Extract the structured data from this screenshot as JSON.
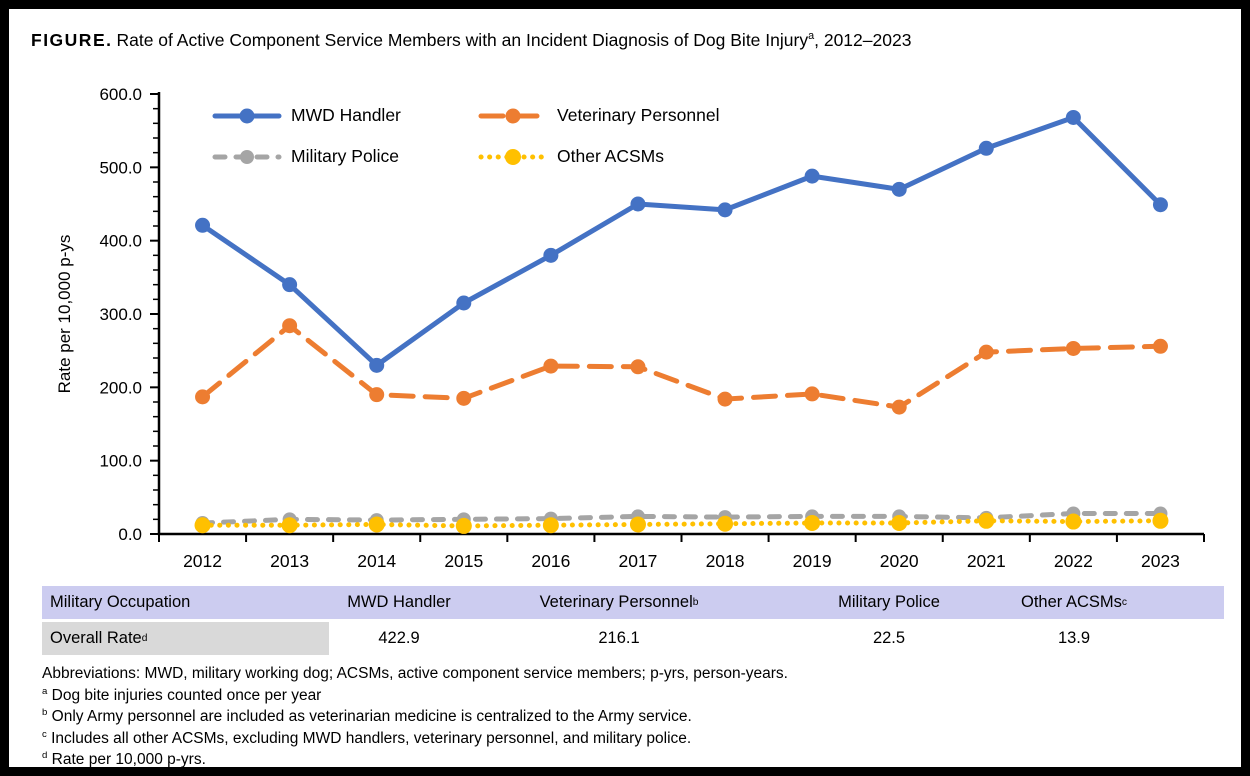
{
  "figure": {
    "label": "FIGURE.",
    "title": "Rate of Active Component Service Members with an Incident Diagnosis of Dog Bite Injury",
    "title_sup": "a",
    "title_suffix": ", 2012–2023"
  },
  "chart_data": {
    "type": "line",
    "ylabel": "Rate per 10,000 p-ys",
    "ylim": [
      0,
      600
    ],
    "ytick_major": 100,
    "ytick_minor": 20,
    "ytick_labels": [
      "0.0",
      "100.0",
      "200.0",
      "300.0",
      "400.0",
      "500.0",
      "600.0"
    ],
    "grid": "off",
    "legend_position": "top-left-inside",
    "categories": [
      "2012",
      "2013",
      "2014",
      "2015",
      "2016",
      "2017",
      "2018",
      "2019",
      "2020",
      "2021",
      "2022",
      "2023"
    ],
    "series": [
      {
        "name": "MWD Handler",
        "color": "#4472C4",
        "dash": "solid",
        "values": [
          421,
          340,
          230,
          315,
          380,
          450,
          442,
          488,
          470,
          526,
          568,
          449
        ]
      },
      {
        "name": "Veterinary Personnel",
        "color": "#ED7D31",
        "dash": "long-dash",
        "values": [
          187,
          284,
          190,
          185,
          229,
          228,
          184,
          191,
          173,
          248,
          253,
          256
        ]
      },
      {
        "name": "Military Police",
        "color": "#A5A5A5",
        "dash": "dash",
        "values": [
          15,
          20,
          19,
          20,
          21,
          24,
          23,
          24,
          24,
          22,
          28,
          28
        ]
      },
      {
        "name": "Other ACSMs",
        "color": "#FFC000",
        "dash": "dot",
        "values": [
          12,
          12,
          13,
          11,
          12,
          13,
          14,
          15,
          15,
          18,
          17,
          18
        ]
      }
    ]
  },
  "table": {
    "header_bg": "#CCCCF0",
    "label_bg": "#D9D9D9",
    "headers": [
      {
        "label": "Military Occupation",
        "sup": ""
      },
      {
        "label": "MWD Handler",
        "sup": ""
      },
      {
        "label": "Veterinary Personnel",
        "sup": "b"
      },
      {
        "label": "Military Police",
        "sup": ""
      },
      {
        "label": "Other ACSMs",
        "sup": "c"
      }
    ],
    "row": {
      "label": "Overall Rate",
      "sup": "d",
      "values": [
        "422.9",
        "216.1",
        "22.5",
        "13.9"
      ]
    }
  },
  "footnotes": {
    "abbreviations": "Abbreviations: MWD, military working dog; ACSMs, active component service members; p-yrs, person-years.",
    "items": [
      {
        "marker": "a",
        "text": "Dog bite injuries counted once per year"
      },
      {
        "marker": "b",
        "text": "Only Army personnel are included as veterinarian medicine is centralized to the Army service."
      },
      {
        "marker": "c",
        "text": "Includes all other ACSMs, excluding MWD handlers, veterinary personnel, and military police."
      },
      {
        "marker": "d",
        "text": "Rate per 10,000 p-yrs."
      }
    ]
  }
}
